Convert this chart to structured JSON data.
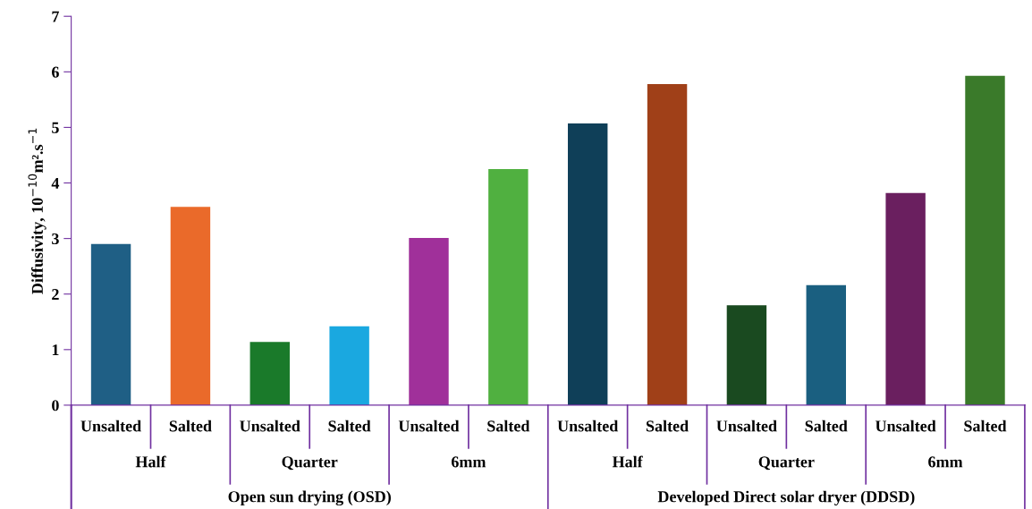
{
  "chart_data": {
    "type": "bar",
    "ylabel": "Diffusivity, 10$^{−10}$m².s$^{−1}$",
    "categories": [
      "Unsalted",
      "Salted",
      "Unsalted",
      "Salted",
      "Unsalted",
      "Salted",
      "Unsalted",
      "Salted",
      "Unsalted",
      "Salted",
      "Unsalted",
      "Salted"
    ],
    "values": [
      2.9,
      3.57,
      1.14,
      1.42,
      3.01,
      4.25,
      5.07,
      5.78,
      1.8,
      2.16,
      3.82,
      5.93
    ],
    "colors": [
      "#1f5f85",
      "#ea6a2a",
      "#1a7a2a",
      "#1aa8e0",
      "#a0309a",
      "#50b040",
      "#0f3f58",
      "#a04018",
      "#1a4a20",
      "#1a5f80",
      "#6a1f5f",
      "#3a7a2a"
    ],
    "ylim": [
      0,
      7
    ],
    "yticks": [
      0,
      1,
      2,
      3,
      4,
      5,
      6,
      7
    ],
    "grid": false,
    "legend": false,
    "annotations": [
      "Half",
      "Quarter",
      "6mm",
      "Half",
      "Quarter",
      "6mm",
      "Open sun drying (OSD)",
      "Developed Direct solar dryer (DDSD)"
    ]
  }
}
